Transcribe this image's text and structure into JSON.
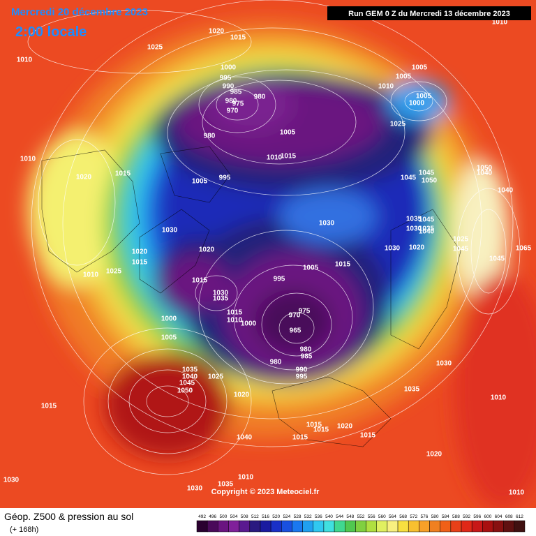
{
  "header": {
    "date": "Mercredi 20 décembre 2023",
    "local_time": "2:00 locale",
    "run": "Run GEM 0 Z du Mercredi 13 décembre 2023"
  },
  "footer": {
    "title": "Géop. Z500 & pression au sol",
    "lead_time": "(+ 168h)",
    "copyright": "Copyright © 2023 Meteociel.fr"
  },
  "legend": {
    "levels": [
      492,
      496,
      500,
      504,
      508,
      512,
      516,
      520,
      524,
      528,
      532,
      536,
      540,
      544,
      548,
      552,
      556,
      560,
      564,
      568,
      572,
      576,
      580,
      584,
      588,
      592,
      596,
      600,
      604,
      608,
      612
    ],
    "colors": [
      "#2a0030",
      "#4a0a5a",
      "#6a1480",
      "#80209a",
      "#5a1a90",
      "#2a1a80",
      "#1a1aa0",
      "#1a30c8",
      "#1a50e0",
      "#1a78f0",
      "#20a0f0",
      "#30c8f0",
      "#40e0e0",
      "#40d890",
      "#50c850",
      "#80d040",
      "#b0e040",
      "#e0f060",
      "#f8f080",
      "#f8e040",
      "#f8c030",
      "#f8a028",
      "#f08020",
      "#f06018",
      "#e84018",
      "#e02818",
      "#c81818",
      "#a81010",
      "#881010",
      "#601010",
      "#401010"
    ]
  },
  "isobar_labels": [
    1020,
    1015,
    1025,
    1010,
    1000,
    995,
    990,
    985,
    980,
    980,
    975,
    970,
    1005,
    1005,
    1010,
    1005,
    1000,
    1025,
    980,
    1005,
    1015,
    1010,
    1010,
    1020,
    1015,
    1005,
    995,
    1045,
    1050,
    1045,
    1050,
    1040,
    1040,
    1035,
    1030,
    1045,
    1040,
    1035,
    1030,
    1030,
    1020,
    1025,
    1045,
    1045,
    1065,
    1020,
    1015,
    1010,
    1030,
    1020,
    1025,
    1005,
    1015,
    995,
    1015,
    1030,
    1035,
    1015,
    1010,
    1000,
    975,
    970,
    965,
    980,
    985,
    980,
    990,
    995,
    1000,
    1005,
    1035,
    1040,
    1045,
    1050,
    1025,
    1020,
    1015,
    1030,
    1035,
    1015,
    1015,
    1020,
    1015,
    1040,
    1015,
    1020,
    1010,
    1030,
    1030,
    1035,
    1010,
    1010,
    1010
  ]
}
